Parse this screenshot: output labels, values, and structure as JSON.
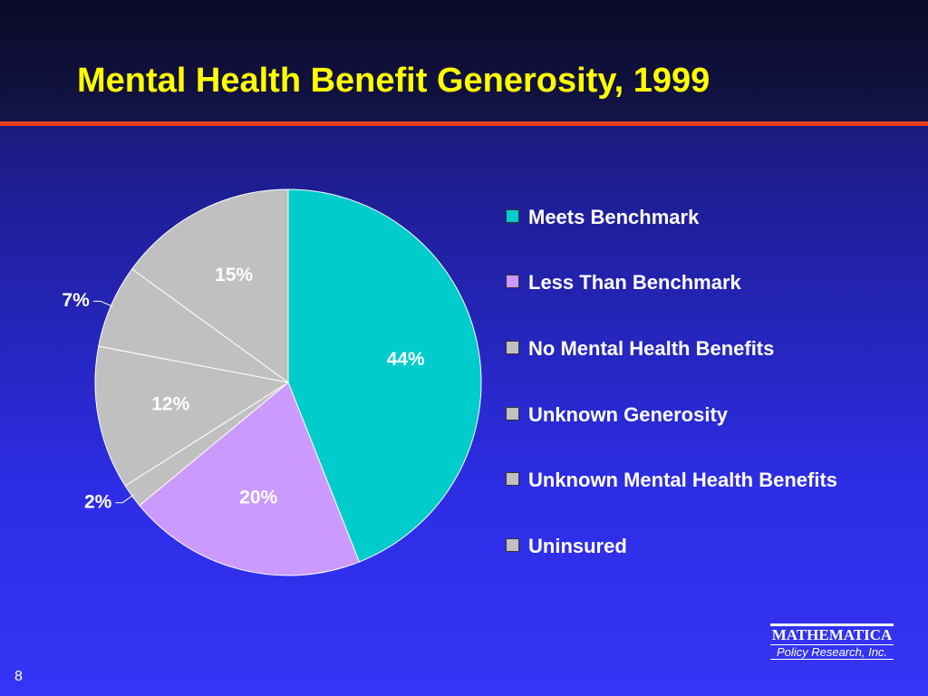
{
  "chart_data": {
    "type": "pie",
    "title": "Mental Health Benefit Generosity, 1999",
    "categories": [
      "Meets Benchmark",
      "Less Than Benchmark",
      "No Mental Health Benefits",
      "Unknown Generosity",
      "Unknown Mental Health Benefits",
      "Uninsured"
    ],
    "values": [
      44,
      20,
      2,
      12,
      7,
      15
    ],
    "value_labels": [
      "44%",
      "20%",
      "2%",
      "12%",
      "7%",
      "15%"
    ],
    "colors": [
      "#00cccc",
      "#cc99ff",
      "#c0c0c0",
      "#c0c0c0",
      "#c0c0c0",
      "#c0c0c0"
    ],
    "legend": "right"
  },
  "footer": {
    "page_number": "8",
    "logo_name": "MATHEMATICA",
    "logo_sub": "Policy Research, Inc."
  }
}
